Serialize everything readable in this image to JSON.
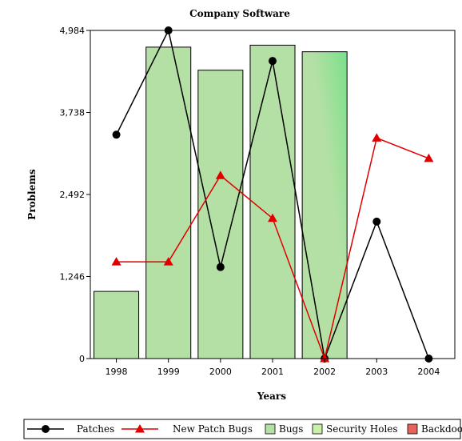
{
  "chart_data": {
    "type": "bar",
    "title": "Company Software",
    "xlabel": "Years",
    "ylabel": "Problems",
    "categories": [
      "1998",
      "1999",
      "2000",
      "2001",
      "2002",
      "2003",
      "2004"
    ],
    "y_ticks": [
      "0",
      "1,246",
      "2,492",
      "3,738",
      "4,984"
    ],
    "ylim": [
      0,
      4984
    ],
    "grid": false,
    "legend_position": "bottom",
    "bar_series": [
      {
        "name": "Bugs",
        "values": [
          1020,
          4730,
          4380,
          4760,
          4660,
          0,
          0
        ],
        "color": "#b5e0a5"
      },
      {
        "name": "Security Holes",
        "values": [
          0,
          0,
          0,
          0,
          0,
          0,
          0
        ],
        "color": "#c8f0a8"
      },
      {
        "name": "Backdoors",
        "values": [
          0,
          0,
          0,
          0,
          0,
          0,
          0
        ],
        "color": "#e8625a"
      }
    ],
    "line_series": [
      {
        "name": "Patches",
        "values": [
          3400,
          4984,
          1390,
          4520,
          0,
          2080,
          0
        ],
        "color": "#000000",
        "marker": "circle"
      },
      {
        "name": "New Patch Bugs",
        "values": [
          1470,
          1470,
          2780,
          2130,
          0,
          3350,
          3040
        ],
        "color": "#e00000",
        "marker": "triangle"
      }
    ],
    "legend": [
      "Patches",
      "New Patch Bugs",
      "Bugs",
      "Security Holes",
      "Backdoors"
    ]
  }
}
